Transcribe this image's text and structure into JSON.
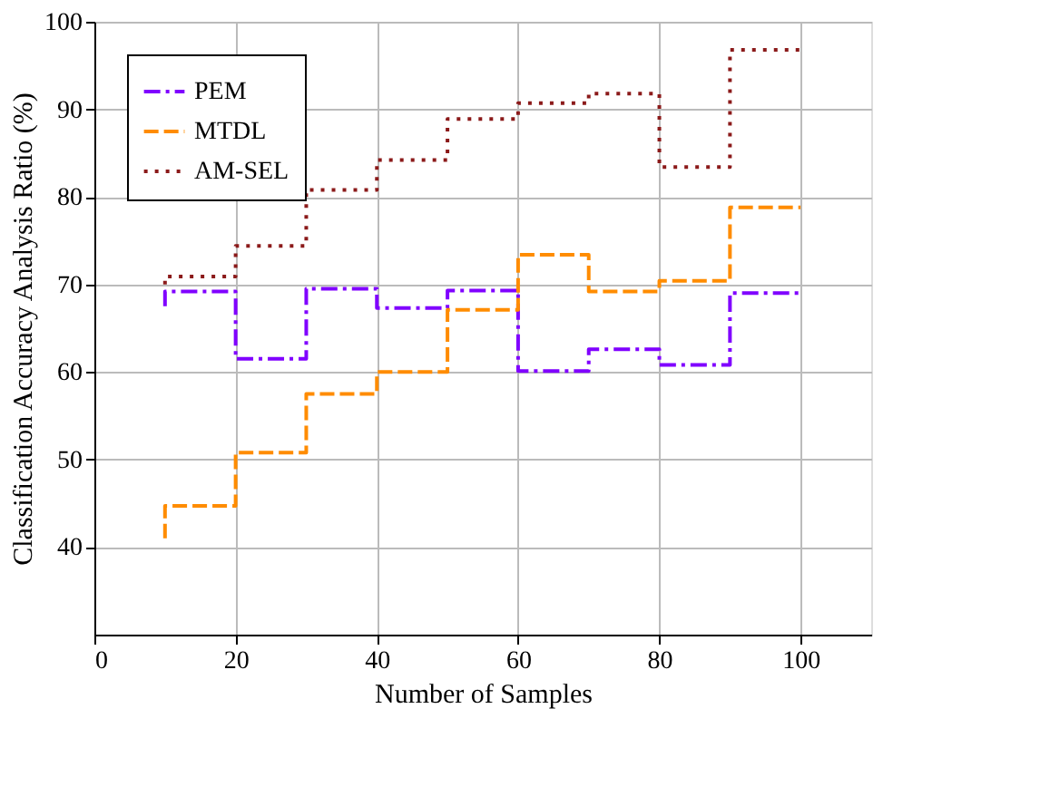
{
  "chart_data": {
    "type": "step",
    "xlabel": "Number of Samples",
    "ylabel": "Classification Accuracy Analysis Ratio (%)",
    "x": [
      10,
      20,
      30,
      40,
      50,
      60,
      70,
      80,
      90,
      100
    ],
    "series": [
      {
        "name": "PEM",
        "color": "#8000ff",
        "line_style": "dashdot",
        "values": [
          67.5,
          69.2,
          61.5,
          69.5,
          67.3,
          69.3,
          60.1,
          62.6,
          60.8,
          69.0
        ]
      },
      {
        "name": "MTDL",
        "color": "#ff8c00",
        "line_style": "dashed",
        "values": [
          41.0,
          44.7,
          50.8,
          57.5,
          60.0,
          67.1,
          73.4,
          69.2,
          70.4,
          78.8
        ]
      },
      {
        "name": "AM-SEL",
        "color": "#8b1a1a",
        "line_style": "dotted",
        "values": [
          70.0,
          70.9,
          74.4,
          80.8,
          84.2,
          88.9,
          90.7,
          91.8,
          83.4,
          96.8
        ]
      }
    ],
    "xlim": [
      0,
      110
    ],
    "xticks": [
      0,
      20,
      40,
      60,
      80,
      100
    ],
    "ylim": [
      30,
      100
    ],
    "yticks": [
      40,
      50,
      60,
      70,
      80,
      90,
      100
    ],
    "grid": true,
    "legend": "top left",
    "marker": "none"
  }
}
